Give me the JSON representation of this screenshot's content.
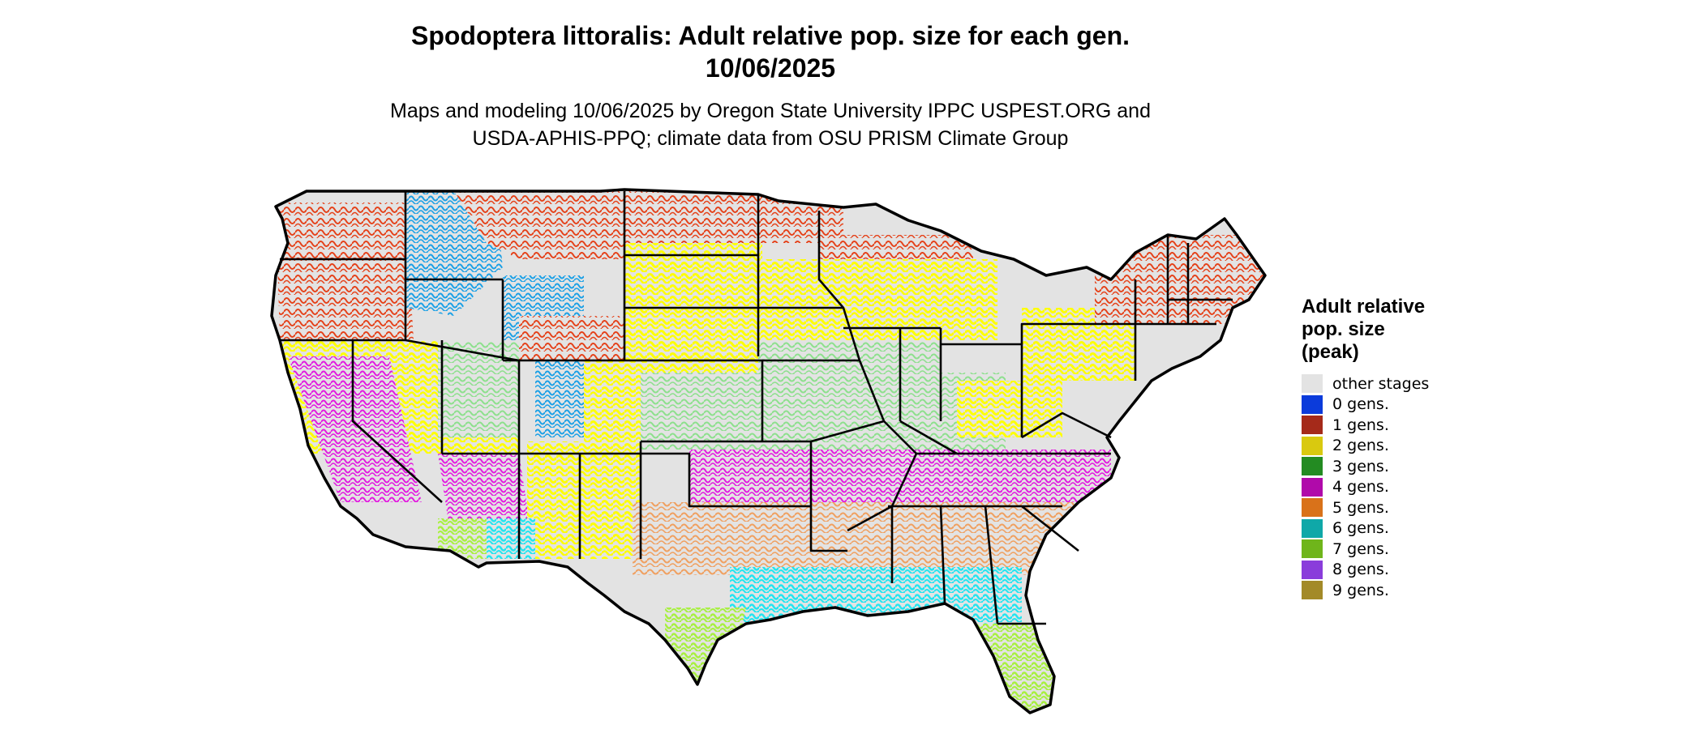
{
  "title_line1": "Spodoptera littoralis: Adult relative pop. size for each gen.",
  "title_line2": "10/06/2025",
  "subtitle_line1": "Maps and modeling 10/06/2025 by Oregon State University IPPC USPEST.ORG and",
  "subtitle_line2": "USDA-APHIS-PPQ; climate data from OSU PRISM Climate Group",
  "legend": {
    "title_line1": "Adult relative",
    "title_line2": "pop. size",
    "title_line3": "(peak)",
    "items": [
      {
        "label": "other stages",
        "color": "#e3e3e3"
      },
      {
        "label": "0 gens.",
        "color": "#0b3bdb"
      },
      {
        "label": "1 gens.",
        "color": "#a52a1a"
      },
      {
        "label": "2 gens.",
        "color": "#d9c90f"
      },
      {
        "label": "3 gens.",
        "color": "#238b22"
      },
      {
        "label": "4 gens.",
        "color": "#b00aaa"
      },
      {
        "label": "5 gens.",
        "color": "#d9721a"
      },
      {
        "label": "6 gens.",
        "color": "#0fa8a8"
      },
      {
        "label": "7 gens.",
        "color": "#6fb51b"
      },
      {
        "label": "8 gens.",
        "color": "#8a3ddb"
      },
      {
        "label": "9 gens.",
        "color": "#a38a28"
      }
    ]
  },
  "map_colors": {
    "background": "#e3e3e3",
    "cold_mountain": "#1aa0e6",
    "gen1": "#e5421a",
    "gen2": "#ffff00",
    "gen3": "#8de08d",
    "gen4": "#e21ae0",
    "gen5": "#f0a060",
    "gen6": "#22e5f0",
    "gen7": "#a8f040",
    "gen8": "#8a3ddb",
    "border": "#000000"
  }
}
